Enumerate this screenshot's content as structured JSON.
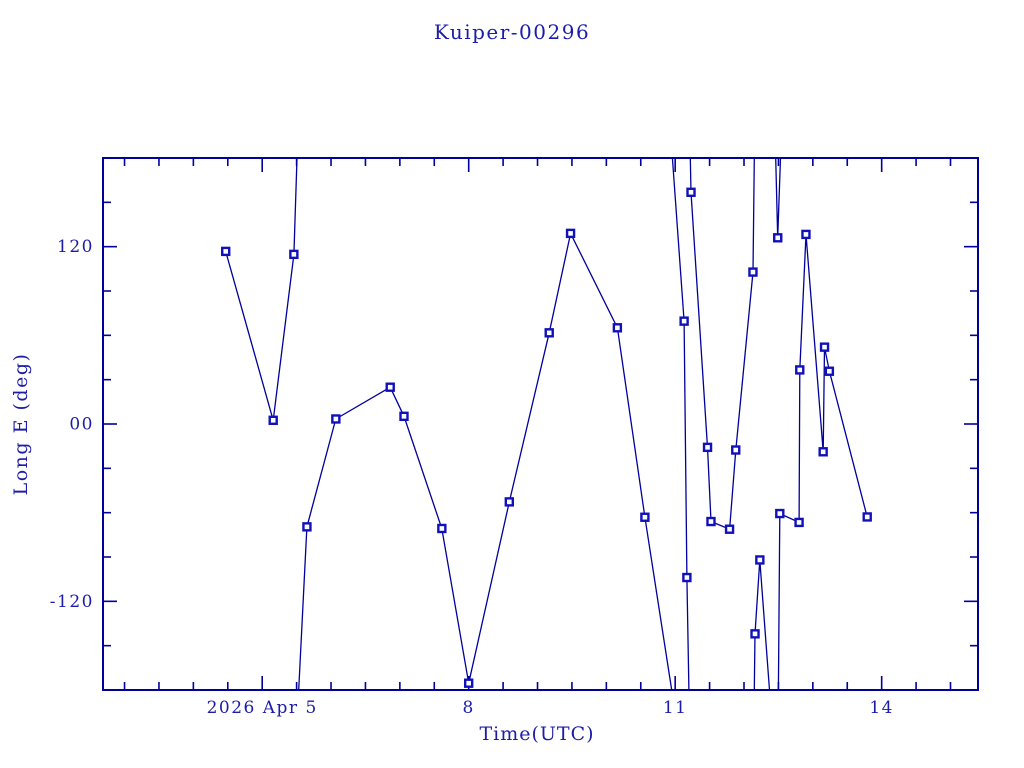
{
  "chart_data": {
    "type": "line",
    "title": "Kuiper-00296",
    "xlabel": "Time(UTC)",
    "ylabel": "Long E (deg)",
    "grid": false,
    "legend": "none",
    "x_axis": {
      "range_day_of_april_2026": [
        2.69,
        15.4
      ],
      "major_ticks": [
        5,
        8,
        11,
        14
      ],
      "major_tick_labels": [
        "2026 Apr 5",
        "8",
        "11",
        "14"
      ],
      "minor_tick_step": 0.5
    },
    "y_axis": {
      "range": [
        -180,
        180
      ],
      "major_ticks": [
        120,
        0,
        -120
      ],
      "major_tick_labels": [
        "120",
        "00",
        "-120"
      ],
      "minor_tick_step": 30
    },
    "colors": {
      "background": "#ffffff",
      "frame": "#00009c",
      "line": "#00009c",
      "marker": "#1111bb",
      "text": "#1c1caa"
    },
    "series": [
      {
        "marker": "open-square",
        "segments": [
          [
            [
              4.47,
              116.8
            ],
            [
              5.16,
              2.5
            ],
            [
              5.46,
              114.8
            ],
            [
              5.505,
              180
            ]
          ],
          [
            [
              5.53,
              -180
            ],
            [
              5.65,
              -69.6
            ],
            [
              6.07,
              3.4
            ],
            [
              6.86,
              24.9
            ],
            [
              7.06,
              5.2
            ],
            [
              7.61,
              -70.7
            ],
            [
              8.0,
              -175.4
            ],
            [
              8.59,
              -52.7
            ],
            [
              9.17,
              61.7
            ],
            [
              9.48,
              129.0
            ],
            [
              10.16,
              65.1
            ],
            [
              10.56,
              -63.1
            ],
            [
              10.95,
              -180
            ]
          ],
          [
            [
              10.96,
              180
            ],
            [
              11.13,
              69.6
            ],
            [
              11.17,
              -103.9
            ],
            [
              11.2,
              -180
            ]
          ],
          [
            [
              11.22,
              180
            ],
            [
              11.23,
              156.8
            ],
            [
              11.47,
              -15.8
            ],
            [
              11.52,
              -66.0
            ],
            [
              11.79,
              -71.2
            ],
            [
              11.88,
              -17.6
            ],
            [
              12.13,
              102.8
            ],
            [
              12.15,
              180
            ]
          ],
          [
            [
              12.15,
              -180
            ],
            [
              12.16,
              -142.0
            ],
            [
              12.23,
              -92.0
            ],
            [
              12.37,
              -180
            ]
          ],
          [
            [
              12.46,
              180
            ],
            [
              12.49,
              126.0
            ],
            [
              12.53,
              180
            ]
          ],
          [
            [
              12.5,
              -180
            ],
            [
              12.52,
              -60.6
            ],
            [
              12.8,
              -66.6
            ],
            [
              12.81,
              36.6
            ],
            [
              12.9,
              128.3
            ],
            [
              13.15,
              -18.8
            ],
            [
              13.17,
              52.0
            ],
            [
              13.24,
              35.7
            ],
            [
              13.79,
              -62.9
            ]
          ]
        ],
        "markers": [
          [
            4.47,
            116.8
          ],
          [
            5.16,
            2.5
          ],
          [
            5.46,
            114.8
          ],
          [
            5.65,
            -69.6
          ],
          [
            6.07,
            3.4
          ],
          [
            6.86,
            24.9
          ],
          [
            7.06,
            5.2
          ],
          [
            7.61,
            -70.7
          ],
          [
            8.0,
            -175.4
          ],
          [
            8.59,
            -52.7
          ],
          [
            9.17,
            61.7
          ],
          [
            9.48,
            129.0
          ],
          [
            10.16,
            65.1
          ],
          [
            10.56,
            -63.1
          ],
          [
            11.13,
            69.6
          ],
          [
            11.17,
            -103.9
          ],
          [
            11.23,
            156.8
          ],
          [
            11.47,
            -15.8
          ],
          [
            11.52,
            -66.0
          ],
          [
            11.79,
            -71.2
          ],
          [
            11.88,
            -17.6
          ],
          [
            12.13,
            102.8
          ],
          [
            12.16,
            -142.0
          ],
          [
            12.23,
            -92.0
          ],
          [
            12.49,
            126.0
          ],
          [
            12.52,
            -60.6
          ],
          [
            12.8,
            -66.6
          ],
          [
            12.81,
            36.6
          ],
          [
            12.9,
            128.3
          ],
          [
            13.15,
            -18.8
          ],
          [
            13.17,
            52.0
          ],
          [
            13.24,
            35.7
          ],
          [
            13.79,
            -62.9
          ]
        ]
      }
    ]
  }
}
